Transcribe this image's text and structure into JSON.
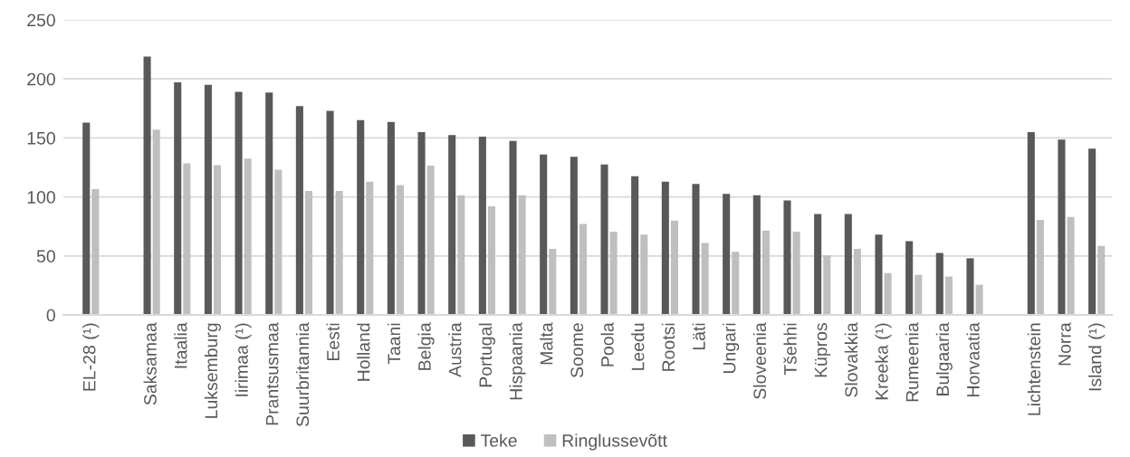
{
  "chart_data": {
    "type": "bar",
    "categories": [
      "EL-28 (¹)",
      null,
      "Saksamaa",
      "Itaalia",
      "Luksemburg",
      "Iirimaa (¹)",
      "Prantsusmaa",
      "Suurbritannia",
      "Eesti",
      "Holland",
      "Taani",
      "Belgia",
      "Austria",
      "Portugal",
      "Hispaania",
      "Malta",
      "Soome",
      "Poola",
      "Leedu",
      "Rootsi",
      "Läti",
      "Ungari",
      "Sloveenia",
      "Tšehhi",
      "Küpros",
      "Slovakkia",
      "Kreeka (¹)",
      "Rumeenia",
      "Bulgaaria",
      "Horvaatia",
      null,
      "Lichtenstein",
      "Norra",
      "Island (¹)"
    ],
    "series": [
      {
        "name": "Teke",
        "color": "#595959",
        "values": [
          163,
          null,
          219,
          197,
          195,
          189,
          188.5,
          177,
          173,
          165,
          163.5,
          155,
          152.5,
          151,
          147.5,
          136,
          134,
          127.5,
          117.5,
          113,
          111,
          102.5,
          101.5,
          97,
          85.5,
          85.5,
          68,
          62.5,
          52.5,
          48,
          null,
          155,
          148.5,
          141
        ]
      },
      {
        "name": "Ringlussevõtt",
        "color": "#bfbfbf",
        "values": [
          106.5,
          null,
          157,
          128.5,
          127,
          132.5,
          123,
          105,
          105,
          113,
          110,
          126.5,
          101.5,
          92,
          101.5,
          56,
          77,
          70.5,
          68,
          80,
          61,
          53.5,
          71.5,
          70.5,
          50.5,
          56,
          35.5,
          34,
          32.5,
          25.5,
          null,
          80.5,
          83,
          58.5
        ]
      }
    ],
    "ylim": [
      0,
      250
    ],
    "yticks": [
      0,
      50,
      100,
      150,
      200,
      250
    ],
    "grid": "y",
    "legend": "bottom"
  }
}
